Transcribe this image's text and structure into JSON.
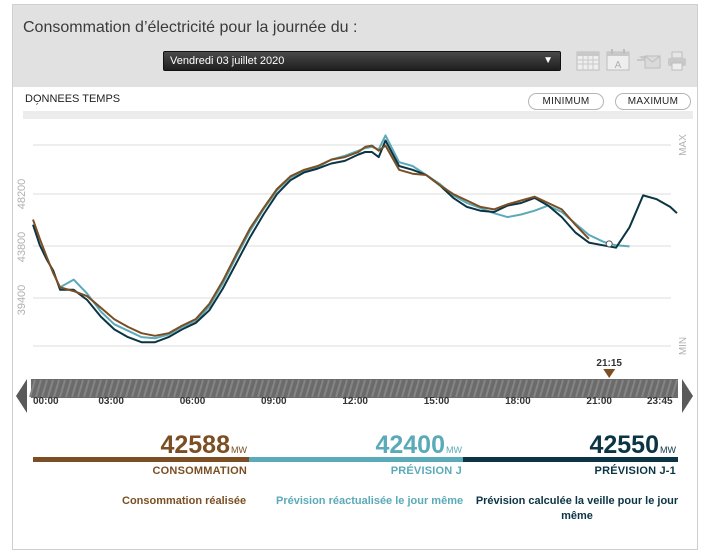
{
  "header": {
    "title": "Consommation d’électricité pour la journée du :",
    "selected_date": "Vendredi 03 juillet 2020",
    "icons": [
      "calendar-grid-icon",
      "calendar-a-icon",
      "mail-icon",
      "print-icon"
    ]
  },
  "panel": {
    "realtime_label": "DONNÉES TEMPS RÉEL",
    "minimum_button": "MINIMUM",
    "maximum_button": "MAXIMUM"
  },
  "cursor": {
    "time_label": "21:15"
  },
  "colors": {
    "consommation": "#7b4f23",
    "prevision_j": "#5aaab9",
    "prevision_j1": "#0b3444",
    "grid": "#dcdcdc"
  },
  "chart_data": {
    "type": "line",
    "title": "",
    "xlabel": "",
    "ylabel": "",
    "y_ticks": [
      "39400",
      "43800",
      "48200"
    ],
    "y_extremes": {
      "max": "MAX",
      "min": "MIN"
    },
    "ylim": [
      35400,
      52400
    ],
    "x_tick_labels": [
      "00:00",
      "03:00",
      "06:00",
      "09:00",
      "12:00",
      "15:00",
      "18:00",
      "21:00",
      "23:45"
    ],
    "x_hours": [
      0,
      0.25,
      0.5,
      0.75,
      1,
      1.5,
      2,
      2.5,
      3,
      3.5,
      4,
      4.5,
      5,
      5.5,
      6,
      6.5,
      7,
      7.5,
      8,
      8.5,
      9,
      9.5,
      10,
      10.5,
      11,
      11.5,
      12,
      12.25,
      12.5,
      12.75,
      13,
      13.5,
      14,
      14.5,
      15,
      15.5,
      16,
      16.5,
      17,
      17.5,
      18,
      18.5,
      19,
      19.5,
      20,
      20.5,
      21,
      21.25,
      21.5,
      22,
      22.5,
      23,
      23.5,
      23.75
    ],
    "series": [
      {
        "name": "CONSOMMATION",
        "values": [
          45300,
          43800,
          42400,
          41100,
          40000,
          39700,
          39300,
          38400,
          37500,
          36900,
          36400,
          36200,
          36400,
          37000,
          37500,
          38700,
          40500,
          42600,
          44600,
          46200,
          47700,
          48700,
          49200,
          49500,
          50000,
          50200,
          50600,
          51000,
          51100,
          50700,
          51100,
          49200,
          48900,
          48800,
          48000,
          47300,
          46800,
          46300,
          46100,
          46500,
          46800,
          47100,
          46600,
          46100,
          44900,
          43800,
          null,
          null,
          null,
          null,
          null,
          null,
          null,
          null
        ]
      },
      {
        "name": "PRÉVISION J",
        "values": [
          null,
          null,
          null,
          null,
          40000,
          40600,
          39500,
          38100,
          37100,
          36600,
          36100,
          36000,
          36300,
          36900,
          37300,
          38500,
          40300,
          42400,
          44400,
          46100,
          47600,
          48600,
          49100,
          49400,
          50000,
          50300,
          50700,
          50900,
          51000,
          50800,
          51900,
          49800,
          49500,
          48800,
          48100,
          47200,
          46600,
          46200,
          45800,
          45500,
          45700,
          46000,
          46400,
          45900,
          45000,
          44100,
          43600,
          43400,
          43300,
          43200,
          null,
          null,
          null,
          null
        ]
      },
      {
        "name": "PRÉVISION J-1",
        "values": [
          44900,
          43300,
          42200,
          41300,
          39800,
          39800,
          39000,
          37700,
          36700,
          36100,
          35700,
          35700,
          36100,
          36700,
          37200,
          38200,
          39900,
          41900,
          43900,
          45700,
          47300,
          48400,
          49000,
          49300,
          49700,
          49900,
          50400,
          50600,
          50600,
          50200,
          51500,
          49500,
          49200,
          48800,
          48000,
          47000,
          46300,
          46000,
          45900,
          46400,
          46600,
          47000,
          46400,
          45500,
          44300,
          43500,
          43300,
          43200,
          43100,
          44700,
          47200,
          46900,
          46300,
          45800
        ]
      }
    ],
    "grid": true,
    "legend_position": "bottom"
  },
  "kpis": [
    {
      "value": "42588",
      "unit": "MW",
      "label": "CONSOMMATION",
      "description": "Consommation réalisée"
    },
    {
      "value": "42400",
      "unit": "MW",
      "label": "PRÉVISION J",
      "description": "Prévision réactualisée le jour même"
    },
    {
      "value": "42550",
      "unit": "MW",
      "label": "PRÉVISION J-1",
      "description": "Prévision calculée la veille pour le jour même"
    }
  ]
}
